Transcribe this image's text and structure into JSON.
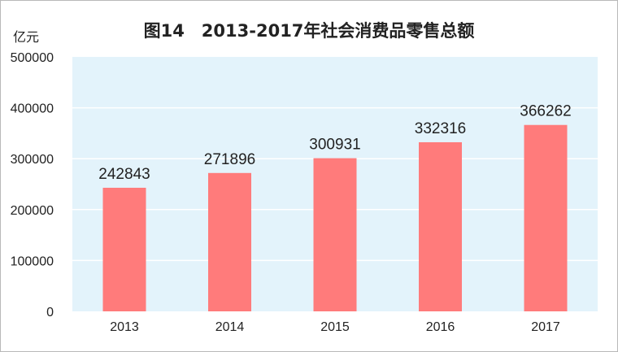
{
  "chart_data": {
    "type": "bar",
    "title": "图14　2013-2017年社会消费品零售总额",
    "ylabel": "亿元",
    "xlabel": "",
    "categories": [
      "2013",
      "2014",
      "2015",
      "2016",
      "2017"
    ],
    "values": [
      242843,
      271896,
      300931,
      332316,
      366262
    ],
    "data_labels": [
      "242843",
      "271896",
      "300931",
      "332316",
      "366262"
    ],
    "ylim": [
      0,
      500000
    ],
    "yticks": [
      "0",
      "100000",
      "200000",
      "300000",
      "400000",
      "500000"
    ],
    "grid": true,
    "legend": "none",
    "bar_color": "#FF7B7B",
    "plot_background": "#E3F3FB",
    "grid_color": "#FFFFFF"
  }
}
